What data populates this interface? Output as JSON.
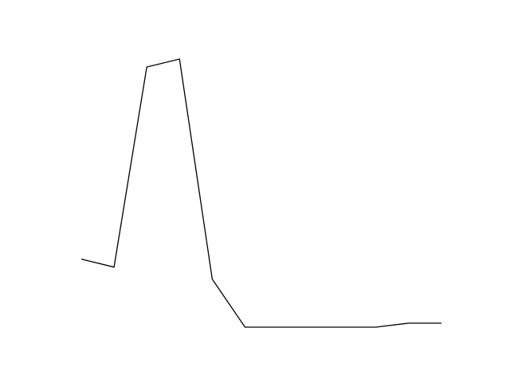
{
  "chart_data": {
    "type": "line",
    "title": "",
    "xlabel": "",
    "ylabel": "",
    "axes_visible": false,
    "grid": false,
    "legend": "none",
    "x": [
      0,
      1,
      2,
      3,
      4,
      5,
      6,
      7,
      8,
      9,
      10,
      11
    ],
    "series": [
      {
        "color": "#000000",
        "values": [
          17,
          16,
          41,
          42,
          14.5,
          8.5,
          8.5,
          8.5,
          8.5,
          8.5,
          9,
          9
        ]
      }
    ],
    "xlim": [
      0,
      11
    ],
    "ylim": [
      8.5,
      42
    ]
  }
}
